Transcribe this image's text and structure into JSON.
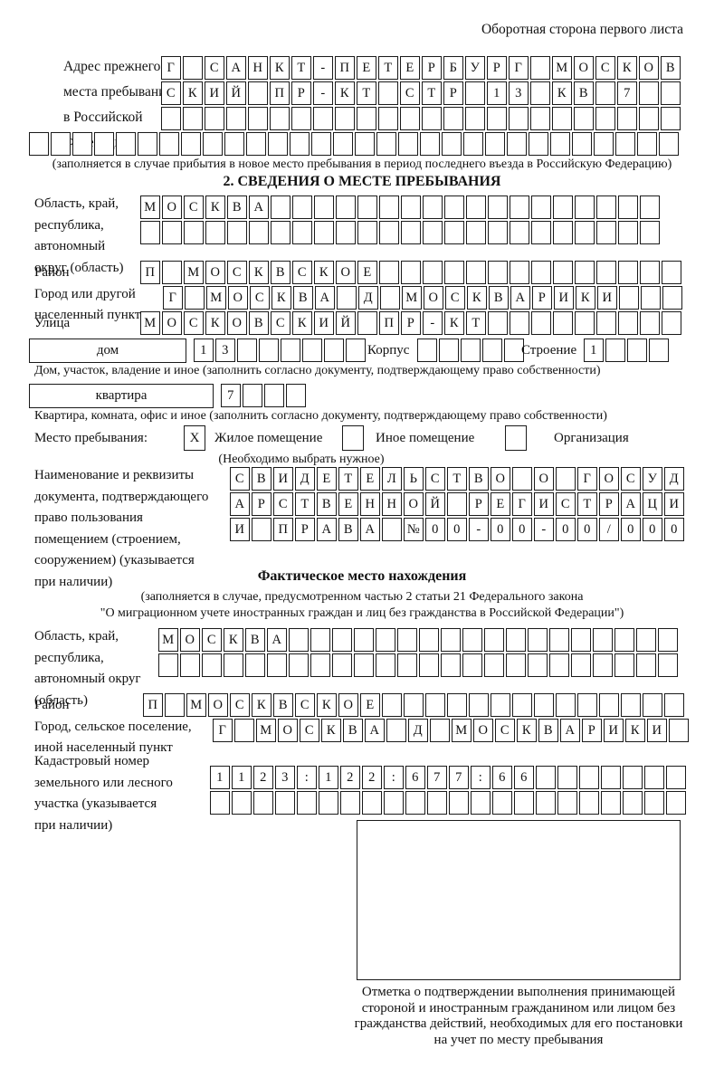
{
  "header": "Оборотная сторона первого листа",
  "prev_address": {
    "label": "Адрес прежнего\nместа пребывания\nв Российской\nФедерации",
    "rows": [
      {
        "chars": "Г САНКТ-ПЕТЕРБУРГ МОСКОВ",
        "len": 24
      },
      {
        "chars": "СКИЙ ПР-КТ СТР 13 КВ 7",
        "len": 24
      },
      {
        "chars": "",
        "len": 24
      },
      {
        "chars": "",
        "len": 30
      }
    ],
    "note": "(заполняется в случае прибытия в новое место пребывания в период последнего въезда в Российскую Федерацию)"
  },
  "section2": {
    "title": "2. СВЕДЕНИЯ О МЕСТЕ ПРЕБЫВАНИЯ",
    "oblast": {
      "label": "Область, край,\nреспублика,\nавтономный\nокруг (область)",
      "rows": [
        {
          "chars": "МОСКВА",
          "len": 24
        },
        {
          "chars": "",
          "len": 24
        }
      ]
    },
    "raion": {
      "label": "Район",
      "row": {
        "chars": "П МОСКВСКОЕ",
        "len": 25
      }
    },
    "gorod": {
      "label": "Город или другой\nнаселенный пункт",
      "row": {
        "chars": "Г МОСКВА Д МОСКВАРИКИ",
        "len": 24
      }
    },
    "ulitsa": {
      "label": "Улица",
      "row": {
        "chars": "МОСКОВСКИЙ ПР-КТ",
        "len": 25
      }
    },
    "dom": {
      "label": "дом",
      "row": {
        "chars": "13",
        "len": 8
      },
      "korpus_label": "Корпус",
      "korpus_row": {
        "chars": "",
        "len": 5
      },
      "stroenie_label": "Строение",
      "stroenie_row": {
        "chars": "1",
        "len": 4
      },
      "note": "Дом, участок, владение и иное (заполнить согласно документу, подтверждающему право собственности)"
    },
    "kvartira": {
      "label": "квартира",
      "row": {
        "chars": "7",
        "len": 4
      },
      "note": "Квартира, комната, офис и иное (заполнить согласно документу, подтверждающему право собственности)"
    },
    "mesto": {
      "label": "Место пребывания:",
      "options": [
        {
          "label": "Жилое помещение",
          "checked": "X"
        },
        {
          "label": "Иное помещение",
          "checked": ""
        },
        {
          "label": "Организация",
          "checked": ""
        }
      ],
      "note": "(Необходимо выбрать нужное)"
    },
    "doc": {
      "label": "Наименование и реквизиты\nдокумента, подтверждающего\nправо пользования\nпомещением (строением,\nсооружением) (указывается\nпри наличии)",
      "rows": [
        {
          "chars": "СВИДЕТЕЛЬСТВО О ГОСУД",
          "len": 21
        },
        {
          "chars": "АРСТВЕННОЙ РЕГИСТРАЦИ",
          "len": 21
        },
        {
          "chars": "И ПРАВА №00-00-00/000",
          "len": 21
        }
      ]
    }
  },
  "fact": {
    "title": "Фактическое место нахождения",
    "note1": "(заполняется в случае, предусмотренном частью 2 статьи 21 Федерального закона",
    "note2": "\"О миграционном учете иностранных граждан и лиц без гражданства в Российской Федерации\")",
    "oblast": {
      "label": "Область, край,\nреспублика,\nавтономный округ\n(область)",
      "rows": [
        {
          "chars": "МОСКВА",
          "len": 24
        },
        {
          "chars": "",
          "len": 24
        }
      ]
    },
    "raion": {
      "label": "Район",
      "row": {
        "chars": "П МОСКВСКОЕ",
        "len": 25
      }
    },
    "gorod": {
      "label": "Город, сельское поселение,\nиной населенный пункт",
      "row": {
        "chars": "Г МОСКВА Д МОСКВАРИКИ",
        "len": 22
      }
    },
    "kadastr": {
      "label": "Кадастровый номер\nземельного или лесного\nучастка (указывается\nпри наличии)",
      "rows": [
        {
          "chars": "1123:122:677:66",
          "len": 22
        },
        {
          "chars": "",
          "len": 22
        }
      ]
    },
    "stamp_note": "Отметка о подтверждении выполнения принимающей стороной и иностранным гражданином или лицом без гражданства действий, необходимых для его постановки на учет по месту пребывания"
  }
}
